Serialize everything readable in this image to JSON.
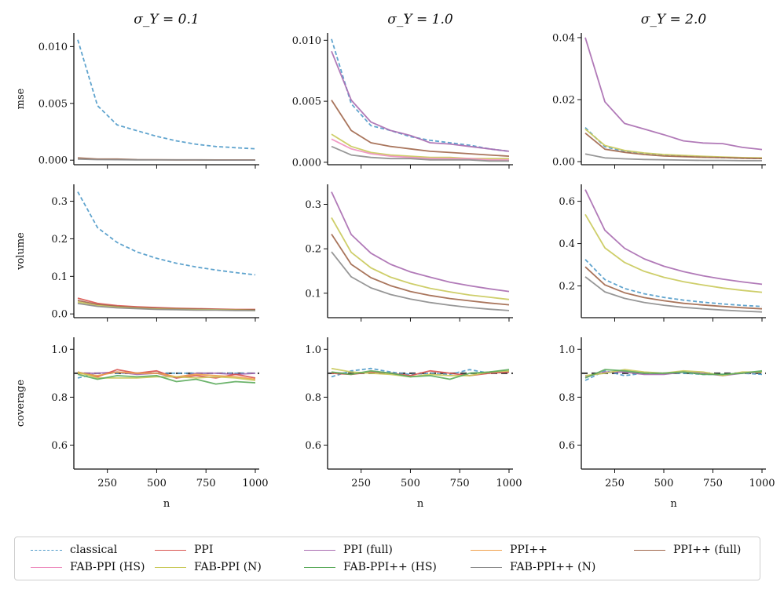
{
  "chart_data": {
    "type": "line",
    "xlabel": "n",
    "row_labels": [
      "mse",
      "volume",
      "coverage"
    ],
    "column_titles": [
      "σ_Y = 0.1",
      "σ_Y = 1.0",
      "σ_Y = 2.0"
    ],
    "x": [
      100,
      200,
      300,
      400,
      500,
      600,
      700,
      800,
      900,
      1000
    ],
    "x_ticks": [
      250,
      500,
      750,
      1000
    ],
    "x_tick_labels": [
      "250",
      "500",
      "750",
      "1000"
    ],
    "xlim": [
      80,
      1020
    ],
    "coverage_reference": 0.9,
    "series_styles": {
      "classical": {
        "color": "#4f9ac9",
        "dashed": true
      },
      "PPI": {
        "color": "#d9534f",
        "dashed": false
      },
      "PPI (full)": {
        "color": "#a86bb0",
        "dashed": false
      },
      "PPI++": {
        "color": "#f0a04b",
        "dashed": false
      },
      "PPI++ (full)": {
        "color": "#a0664a",
        "dashed": false
      },
      "FAB-PPI (HS)": {
        "color": "#ee8fbf",
        "dashed": false
      },
      "FAB-PPI (N)": {
        "color": "#c9c95a",
        "dashed": false
      },
      "FAB-PPI++ (HS)": {
        "color": "#5bab5b",
        "dashed": false
      },
      "FAB-PPI++ (N)": {
        "color": "#8c8c8c",
        "dashed": false
      }
    },
    "legend": [
      "classical",
      "PPI",
      "PPI (full)",
      "PPI++",
      "PPI++ (full)",
      "FAB-PPI (HS)",
      "FAB-PPI (N)",
      "FAB-PPI++ (HS)",
      "FAB-PPI++ (N)"
    ],
    "legend_position": "bottom",
    "panels": [
      {
        "row": 0,
        "col": 0,
        "ylim": [
          -0.0004,
          0.0112
        ],
        "yticks": [
          0.0,
          0.005,
          0.01
        ],
        "ytick_labels": [
          "0.000",
          "0.005",
          "0.010"
        ],
        "series": [
          {
            "name": "classical",
            "values": [
              0.0106,
              0.0048,
              0.0031,
              0.0026,
              0.0021,
              0.0017,
              0.0014,
              0.0012,
              0.0011,
              0.001
            ]
          },
          {
            "name": "PPI++ (full)",
            "values": [
              0.0002,
              0.0001,
              0.0001,
              5e-05,
              4e-05,
              3e-05,
              3e-05,
              2e-05,
              2e-05,
              2e-05
            ]
          },
          {
            "name": "FAB-PPI++ (N)",
            "values": [
              0.0001,
              5e-05,
              4e-05,
              3e-05,
              2e-05,
              2e-05,
              2e-05,
              1e-05,
              1e-05,
              1e-05
            ]
          }
        ]
      },
      {
        "row": 0,
        "col": 1,
        "ylim": [
          -0.0002,
          0.0106
        ],
        "yticks": [
          0.0,
          0.005,
          0.01
        ],
        "ytick_labels": [
          "0.000",
          "0.005",
          "0.010"
        ],
        "series": [
          {
            "name": "classical",
            "values": [
              0.0101,
              0.0048,
              0.003,
              0.0026,
              0.0021,
              0.0018,
              0.0016,
              0.0014,
              0.0011,
              0.0009
            ]
          },
          {
            "name": "PPI (full)",
            "values": [
              0.0091,
              0.0051,
              0.0033,
              0.0026,
              0.0022,
              0.0016,
              0.0015,
              0.0013,
              0.0011,
              0.0009
            ]
          },
          {
            "name": "PPI++ (full)",
            "values": [
              0.0051,
              0.0026,
              0.0016,
              0.0013,
              0.0011,
              0.0009,
              0.0008,
              0.0007,
              0.0006,
              0.0005
            ]
          },
          {
            "name": "FAB-PPI (N)",
            "values": [
              0.0023,
              0.0013,
              0.0008,
              0.0006,
              0.0005,
              0.0004,
              0.0004,
              0.0003,
              0.0003,
              0.0003
            ]
          },
          {
            "name": "FAB-PPI (HS)",
            "values": [
              0.0019,
              0.0011,
              0.0007,
              0.0005,
              0.0004,
              0.0003,
              0.0003,
              0.0003,
              0.0002,
              0.0002
            ]
          },
          {
            "name": "FAB-PPI++ (N)",
            "values": [
              0.0013,
              0.0006,
              0.0004,
              0.0003,
              0.0003,
              0.0002,
              0.0002,
              0.0002,
              0.0001,
              0.0001
            ]
          }
        ]
      },
      {
        "row": 0,
        "col": 2,
        "ylim": [
          -0.001,
          0.0415
        ],
        "yticks": [
          0.0,
          0.02,
          0.04
        ],
        "ytick_labels": [
          "0.00",
          "0.02",
          "0.04"
        ],
        "series": [
          {
            "name": "PPI (full)",
            "values": [
              0.04,
              0.0193,
              0.0123,
              0.0105,
              0.0087,
              0.0067,
              0.006,
              0.0058,
              0.0046,
              0.0039
            ]
          },
          {
            "name": "classical",
            "values": [
              0.011,
              0.0048,
              0.0033,
              0.0027,
              0.0022,
              0.0018,
              0.0015,
              0.0013,
              0.0011,
              0.001
            ]
          },
          {
            "name": "FAB-PPI (N)",
            "values": [
              0.0105,
              0.0052,
              0.0036,
              0.0028,
              0.0023,
              0.002,
              0.0017,
              0.0015,
              0.0013,
              0.0012
            ]
          },
          {
            "name": "PPI++ (full)",
            "values": [
              0.0092,
              0.004,
              0.003,
              0.0023,
              0.0018,
              0.0016,
              0.0014,
              0.0013,
              0.0011,
              0.001
            ]
          },
          {
            "name": "FAB-PPI++ (N)",
            "values": [
              0.0025,
              0.0012,
              0.0009,
              0.0007,
              0.0006,
              0.0005,
              0.0004,
              0.0004,
              0.0003,
              0.0003
            ]
          }
        ]
      },
      {
        "row": 1,
        "col": 0,
        "ylim": [
          -0.01,
          0.345
        ],
        "yticks": [
          0.0,
          0.1,
          0.2,
          0.3
        ],
        "ytick_labels": [
          "0.0",
          "0.1",
          "0.2",
          "0.3"
        ],
        "series": [
          {
            "name": "classical",
            "values": [
              0.325,
              0.23,
              0.19,
              0.165,
              0.148,
              0.135,
              0.125,
              0.117,
              0.11,
              0.104
            ]
          },
          {
            "name": "PPI",
            "values": [
              0.042,
              0.028,
              0.022,
              0.019,
              0.017,
              0.015,
              0.014,
              0.013,
              0.012,
              0.012
            ]
          },
          {
            "name": "PPI++ (full)",
            "values": [
              0.036,
              0.025,
              0.02,
              0.017,
              0.015,
              0.014,
              0.013,
              0.012,
              0.011,
              0.011
            ]
          },
          {
            "name": "FAB-PPI (N)",
            "values": [
              0.032,
              0.022,
              0.018,
              0.015,
              0.013,
              0.012,
              0.011,
              0.011,
              0.01,
              0.009
            ]
          },
          {
            "name": "FAB-PPI++ (N)",
            "values": [
              0.028,
              0.02,
              0.016,
              0.014,
              0.012,
              0.011,
              0.01,
              0.01,
              0.009,
              0.009
            ]
          }
        ]
      },
      {
        "row": 1,
        "col": 1,
        "ylim": [
          0.045,
          0.345
        ],
        "yticks": [
          0.1,
          0.2,
          0.3
        ],
        "ytick_labels": [
          "0.1",
          "0.2",
          "0.3"
        ],
        "series": [
          {
            "name": "PPI (full)",
            "values": [
              0.328,
              0.232,
              0.19,
              0.165,
              0.148,
              0.136,
              0.125,
              0.117,
              0.11,
              0.104
            ]
          },
          {
            "name": "FAB-PPI (N)",
            "values": [
              0.27,
              0.192,
              0.157,
              0.136,
              0.122,
              0.111,
              0.103,
              0.096,
              0.091,
              0.086
            ]
          },
          {
            "name": "PPI++ (full)",
            "values": [
              0.233,
              0.165,
              0.135,
              0.117,
              0.104,
              0.095,
              0.088,
              0.083,
              0.078,
              0.074
            ]
          },
          {
            "name": "FAB-PPI++ (N)",
            "values": [
              0.193,
              0.137,
              0.112,
              0.097,
              0.087,
              0.079,
              0.073,
              0.068,
              0.064,
              0.061
            ]
          }
        ]
      },
      {
        "row": 1,
        "col": 2,
        "ylim": [
          0.05,
          0.68
        ],
        "yticks": [
          0.2,
          0.4,
          0.6
        ],
        "ytick_labels": [
          "0.2",
          "0.4",
          "0.6"
        ],
        "series": [
          {
            "name": "PPI (full)",
            "values": [
              0.655,
              0.463,
              0.378,
              0.328,
              0.293,
              0.268,
              0.248,
              0.232,
              0.219,
              0.208
            ]
          },
          {
            "name": "FAB-PPI (N)",
            "values": [
              0.538,
              0.38,
              0.311,
              0.269,
              0.241,
              0.22,
              0.204,
              0.19,
              0.179,
              0.17
            ]
          },
          {
            "name": "classical",
            "values": [
              0.325,
              0.23,
              0.188,
              0.163,
              0.146,
              0.133,
              0.123,
              0.115,
              0.108,
              0.103
            ]
          },
          {
            "name": "PPI++ (full)",
            "values": [
              0.29,
              0.205,
              0.168,
              0.145,
              0.13,
              0.118,
              0.11,
              0.103,
              0.097,
              0.092
            ]
          },
          {
            "name": "FAB-PPI++ (N)",
            "values": [
              0.243,
              0.172,
              0.141,
              0.122,
              0.109,
              0.099,
              0.092,
              0.086,
              0.081,
              0.077
            ]
          }
        ]
      },
      {
        "row": 2,
        "col": 0,
        "ylim": [
          0.5,
          1.05
        ],
        "yticks": [
          0.6,
          0.8,
          1.0
        ],
        "ytick_labels": [
          "0.6",
          "0.8",
          "1.0"
        ],
        "series": [
          {
            "name": "classical",
            "values": [
              0.88,
              0.9,
              0.9,
              0.9,
              0.9,
              0.9,
              0.9,
              0.9,
              0.9,
              0.9
            ]
          },
          {
            "name": "PPI (full)",
            "values": [
              0.9,
              0.9,
              0.905,
              0.895,
              0.9,
              0.88,
              0.9,
              0.9,
              0.895,
              0.9
            ]
          },
          {
            "name": "PPI",
            "values": [
              0.905,
              0.885,
              0.915,
              0.9,
              0.91,
              0.88,
              0.89,
              0.88,
              0.895,
              0.88
            ]
          },
          {
            "name": "PPI++",
            "values": [
              0.9,
              0.89,
              0.905,
              0.9,
              0.9,
              0.885,
              0.895,
              0.89,
              0.885,
              0.875
            ]
          },
          {
            "name": "FAB-PPI (N)",
            "values": [
              0.905,
              0.88,
              0.88,
              0.88,
              0.885,
              0.885,
              0.88,
              0.885,
              0.88,
              0.87
            ]
          },
          {
            "name": "FAB-PPI++ (HS)",
            "values": [
              0.895,
              0.875,
              0.89,
              0.885,
              0.89,
              0.865,
              0.875,
              0.855,
              0.865,
              0.86
            ]
          }
        ]
      },
      {
        "row": 2,
        "col": 1,
        "ylim": [
          0.5,
          1.05
        ],
        "yticks": [
          0.6,
          0.8,
          1.0
        ],
        "ytick_labels": [
          "0.6",
          "0.8",
          "1.0"
        ],
        "series": [
          {
            "name": "classical",
            "values": [
              0.885,
              0.91,
              0.92,
              0.905,
              0.895,
              0.9,
              0.895,
              0.915,
              0.9,
              0.905
            ]
          },
          {
            "name": "PPI",
            "values": [
              0.9,
              0.895,
              0.905,
              0.9,
              0.89,
              0.91,
              0.9,
              0.89,
              0.9,
              0.905
            ]
          },
          {
            "name": "FAB-PPI (N)",
            "values": [
              0.92,
              0.905,
              0.9,
              0.895,
              0.885,
              0.895,
              0.89,
              0.89,
              0.905,
              0.91
            ]
          },
          {
            "name": "FAB-PPI++ (HS)",
            "values": [
              0.905,
              0.895,
              0.91,
              0.9,
              0.885,
              0.89,
              0.875,
              0.9,
              0.905,
              0.915
            ]
          }
        ]
      },
      {
        "row": 2,
        "col": 2,
        "ylim": [
          0.5,
          1.05
        ],
        "yticks": [
          0.6,
          0.8,
          1.0
        ],
        "ytick_labels": [
          "0.6",
          "0.8",
          "1.0"
        ],
        "series": [
          {
            "name": "classical",
            "values": [
              0.87,
              0.91,
              0.89,
              0.9,
              0.9,
              0.9,
              0.895,
              0.895,
              0.9,
              0.895
            ]
          },
          {
            "name": "PPI (full)",
            "values": [
              0.885,
              0.905,
              0.905,
              0.895,
              0.895,
              0.905,
              0.9,
              0.89,
              0.9,
              0.905
            ]
          },
          {
            "name": "FAB-PPI (N)",
            "values": [
              0.89,
              0.9,
              0.915,
              0.905,
              0.9,
              0.91,
              0.905,
              0.89,
              0.905,
              0.905
            ]
          },
          {
            "name": "FAB-PPI++ (HS)",
            "values": [
              0.88,
              0.915,
              0.91,
              0.9,
              0.9,
              0.905,
              0.895,
              0.895,
              0.9,
              0.91
            ]
          }
        ]
      }
    ]
  }
}
